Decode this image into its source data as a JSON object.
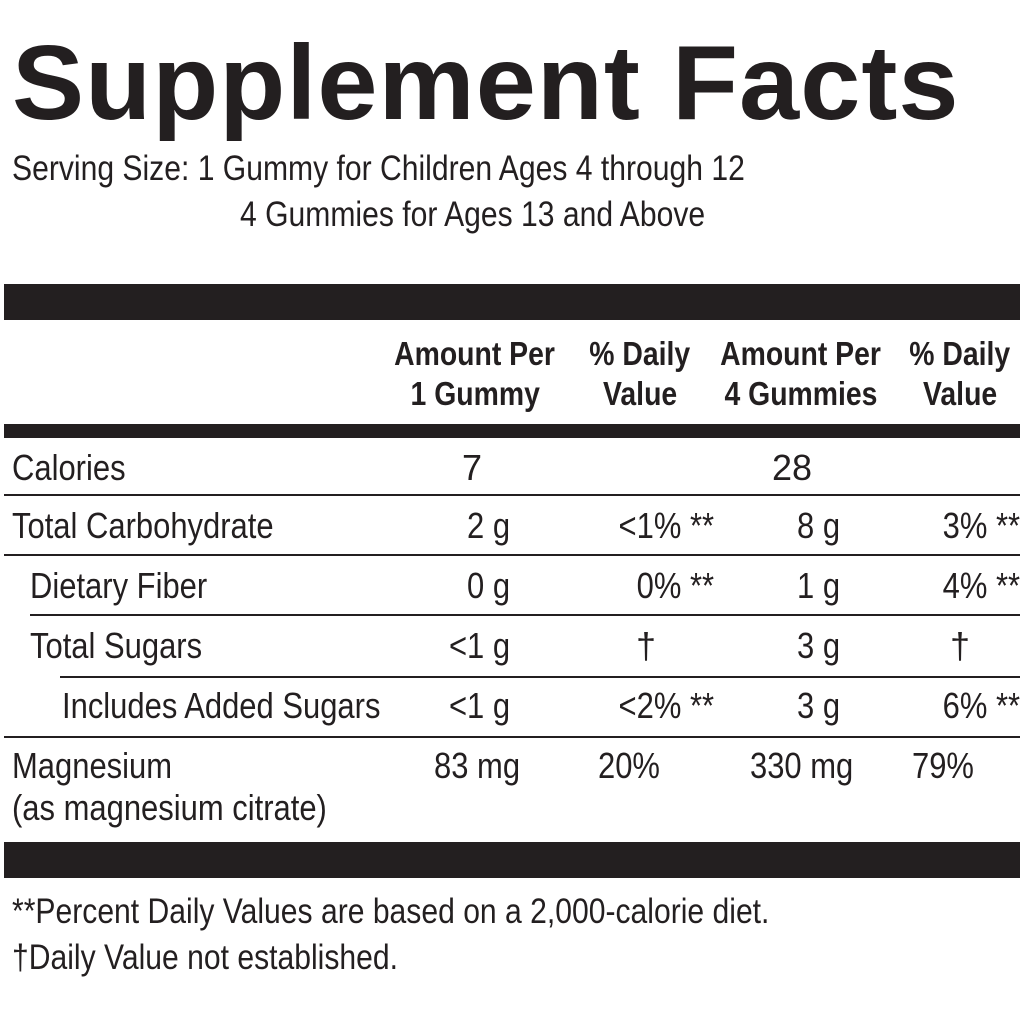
{
  "title": "Supplement Facts",
  "serving_size": {
    "line1": "Serving Size: 1 Gummy for Children Ages 4 through 12",
    "line2": "4 Gummies for Ages 13 and Above"
  },
  "columns": {
    "amount1_l1": "Amount Per",
    "amount1_l2": "1 Gummy",
    "dv1_l1": "% Daily",
    "dv1_l2": "Value",
    "amount4_l1": "Amount Per",
    "amount4_l2": "4 Gummies",
    "dv4_l1": "% Daily",
    "dv4_l2": "Value"
  },
  "rows": [
    {
      "label": "Calories",
      "amt1": "7",
      "dv1": "",
      "amt4": "28",
      "dv4": ""
    },
    {
      "label": "Total Carbohydrate",
      "amt1": "2 g",
      "dv1": "<1% **",
      "amt4": "8 g",
      "dv4": "3% **"
    },
    {
      "label": "Dietary Fiber",
      "amt1": "0 g",
      "dv1": "0% **",
      "amt4": "1 g",
      "dv4": "4% **"
    },
    {
      "label": "Total Sugars",
      "amt1": "<1 g",
      "dv1": "†",
      "amt4": "3 g",
      "dv4": "†"
    },
    {
      "label": "Includes Added Sugars",
      "amt1": "<1 g",
      "dv1": "<2% **",
      "amt4": "3 g",
      "dv4": "6% **"
    },
    {
      "label": "Magnesium",
      "sublabel": "(as magnesium citrate)",
      "amt1": "83 mg",
      "dv1": "20%",
      "amt4": "330 mg",
      "dv4": "79%"
    }
  ],
  "footnotes": {
    "note1": "**Percent Daily Values are based on a 2,000-calorie diet.",
    "note2": "†Daily Value not established."
  }
}
